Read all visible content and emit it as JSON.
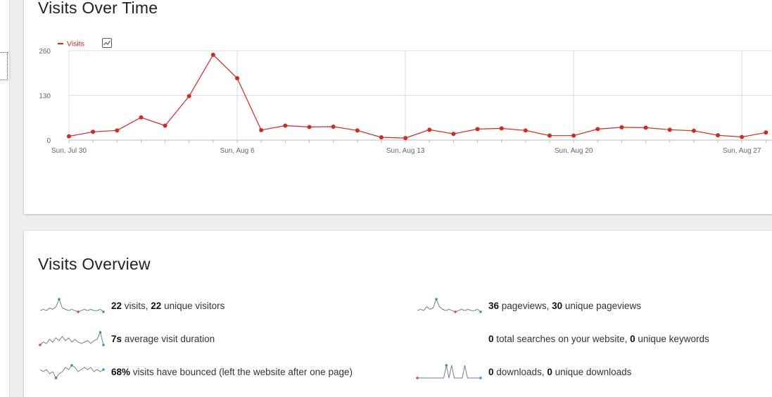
{
  "chart_card": {
    "title": "Visits Over Time",
    "legend_label": "Visits",
    "legend_icon": "chart-type-icon"
  },
  "chart_data": {
    "type": "line",
    "title": "",
    "xlabel": "",
    "ylabel": "",
    "ylim": [
      0,
      260
    ],
    "yticks": [
      0,
      130,
      260
    ],
    "x_tick_labels": [
      "Sun, Jul 30",
      "Sun, Aug 6",
      "Sun, Aug 13",
      "Sun, Aug 20",
      "Sun, Aug 27"
    ],
    "x": [
      "2023-07-30",
      "2023-07-31",
      "2023-08-01",
      "2023-08-02",
      "2023-08-03",
      "2023-08-04",
      "2023-08-05",
      "2023-08-06",
      "2023-08-07",
      "2023-08-08",
      "2023-08-09",
      "2023-08-10",
      "2023-08-11",
      "2023-08-12",
      "2023-08-13",
      "2023-08-14",
      "2023-08-15",
      "2023-08-16",
      "2023-08-17",
      "2023-08-18",
      "2023-08-19",
      "2023-08-20",
      "2023-08-21",
      "2023-08-22",
      "2023-08-23",
      "2023-08-24",
      "2023-08-25",
      "2023-08-26",
      "2023-08-27",
      "2023-08-28"
    ],
    "series": [
      {
        "name": "Visits",
        "color": "#d4291f",
        "values": [
          11,
          24,
          28,
          66,
          42,
          128,
          248,
          180,
          29,
          42,
          38,
          39,
          28,
          8,
          6,
          30,
          18,
          32,
          34,
          28,
          13,
          13,
          32,
          37,
          36,
          30,
          27,
          14,
          9,
          22
        ]
      }
    ],
    "grid": true
  },
  "overview": {
    "title": "Visits Overview",
    "colors": {
      "spark_line": "#6b7f99",
      "spark_max": "#3aa54a",
      "spark_min": "#e04a4a",
      "spark_last": "#3d8fe0"
    },
    "rows": [
      {
        "icon": "visits-sparkline-icon",
        "n1": "22",
        "t1": " visits, ",
        "n2": "22",
        "t2": " unique visitors",
        "spark": [
          3,
          4,
          3,
          5,
          4,
          6,
          12,
          5,
          4,
          3,
          4,
          3,
          2,
          3,
          4,
          3,
          4,
          3,
          3,
          4,
          2
        ]
      },
      {
        "icon": "visit-duration-sparkline-icon",
        "n1": "7s",
        "t1": " average visit duration",
        "n2": "",
        "t2": "",
        "spark": [
          4,
          6,
          5,
          8,
          6,
          9,
          7,
          10,
          7,
          9,
          6,
          8,
          6,
          5,
          6,
          7,
          5,
          7,
          8,
          13,
          4
        ]
      },
      {
        "icon": "bounce-rate-sparkline-icon",
        "n1": "68%",
        "t1": " visits have bounced (left the website after one page)",
        "n2": "",
        "t2": "",
        "spark": [
          7,
          6,
          7,
          5,
          6,
          3,
          5,
          6,
          8,
          7,
          9,
          8,
          6,
          7,
          8,
          7,
          8,
          6,
          7,
          6,
          7
        ]
      },
      {
        "icon": "pageviews-sparkline-icon",
        "n1": "36",
        "t1": " pageviews, ",
        "n2": "30",
        "t2": " unique pageviews",
        "spark": [
          3,
          4,
          3,
          6,
          4,
          5,
          12,
          6,
          4,
          3,
          4,
          3,
          2,
          3,
          4,
          3,
          4,
          3,
          3,
          4,
          2
        ]
      },
      {
        "icon": "searches-sparkline-icon",
        "n1": "0",
        "t1": " total searches on your website, ",
        "n2": "0",
        "t2": " unique keywords",
        "spark": []
      },
      {
        "icon": "downloads-sparkline-icon",
        "n1": "0",
        "t1": " downloads, ",
        "n2": "0",
        "t2": " unique downloads",
        "spark": [
          0,
          0,
          0,
          0,
          0,
          0,
          0,
          0,
          0,
          0,
          0,
          10,
          0,
          10,
          0,
          0,
          0,
          0,
          10,
          0,
          0,
          0,
          0,
          0,
          0
        ]
      }
    ]
  }
}
